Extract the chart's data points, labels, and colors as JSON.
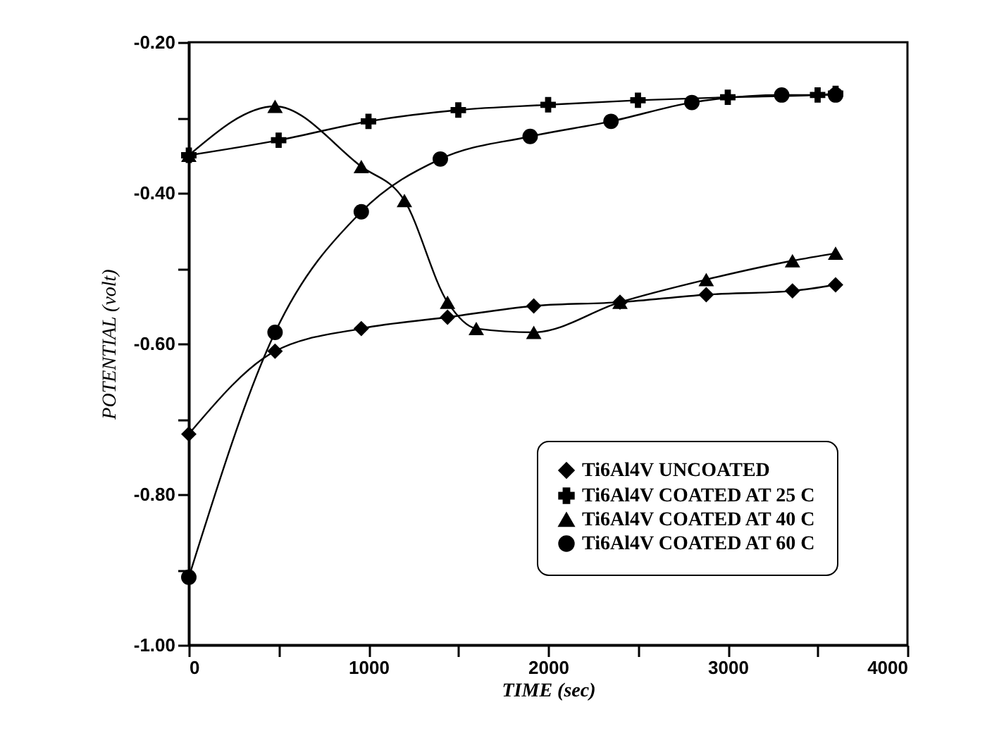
{
  "chart_data": {
    "type": "line",
    "xlabel": "TIME (sec)",
    "ylabel": "POTENTIAL (volt)",
    "xlim": [
      0,
      4000
    ],
    "ylim": [
      -1.0,
      -0.2
    ],
    "xticks": [
      0,
      {
        "value": 500,
        "label": null
      },
      1000,
      {
        "value": 1500,
        "label": null
      },
      2000,
      {
        "value": 2500,
        "label": null
      },
      3000,
      {
        "value": 3500,
        "label": null
      },
      4000
    ],
    "yticks": [
      {
        "value": -1.0,
        "label": "-1.00"
      },
      {
        "value": -0.9,
        "label": null
      },
      {
        "value": -0.8,
        "label": "-0.80"
      },
      {
        "value": -0.7,
        "label": null
      },
      {
        "value": -0.6,
        "label": "-0.60"
      },
      {
        "value": -0.5,
        "label": null
      },
      {
        "value": -0.4,
        "label": "-0.40"
      },
      {
        "value": -0.3,
        "label": null
      },
      {
        "value": -0.2,
        "label": "-0.20"
      }
    ],
    "grid": false,
    "legend": "bottom right",
    "line_style": "solid",
    "series": [
      {
        "name": "Ti6Al4V UNCOATED",
        "color": "#000000",
        "marker": "diamond",
        "x": [
          0,
          480,
          960,
          1440,
          1920,
          2400,
          2880,
          3360,
          3600
        ],
        "values": [
          -0.72,
          -0.61,
          -0.58,
          -0.565,
          -0.55,
          -0.545,
          -0.535,
          -0.53,
          -0.522
        ]
      },
      {
        "name": "Ti6Al4V COATED AT 25 C",
        "color": "#000000",
        "marker": "cross",
        "x": [
          0,
          500,
          1000,
          1500,
          2000,
          2500,
          3000,
          3500,
          3600
        ],
        "values": [
          -0.35,
          -0.33,
          -0.305,
          -0.29,
          -0.283,
          -0.277,
          -0.273,
          -0.27,
          -0.268
        ]
      },
      {
        "name": "Ti6Al4V COATED AT 40 C",
        "color": "#000000",
        "marker": "triangle",
        "x": [
          0,
          480,
          960,
          1200,
          1440,
          1600,
          1920,
          2400,
          2880,
          3360,
          3600
        ],
        "values": [
          -0.35,
          -0.285,
          -0.365,
          -0.41,
          -0.545,
          -0.58,
          -0.585,
          -0.545,
          -0.515,
          -0.49,
          -0.48
        ]
      },
      {
        "name": "Ti6Al4V COATED AT 60 C",
        "color": "#000000",
        "marker": "circle",
        "x": [
          0,
          480,
          960,
          1400,
          1900,
          2350,
          2800,
          3300,
          3600
        ],
        "values": [
          -0.91,
          -0.585,
          -0.425,
          -0.355,
          -0.325,
          -0.305,
          -0.28,
          -0.27,
          -0.27
        ]
      }
    ]
  }
}
